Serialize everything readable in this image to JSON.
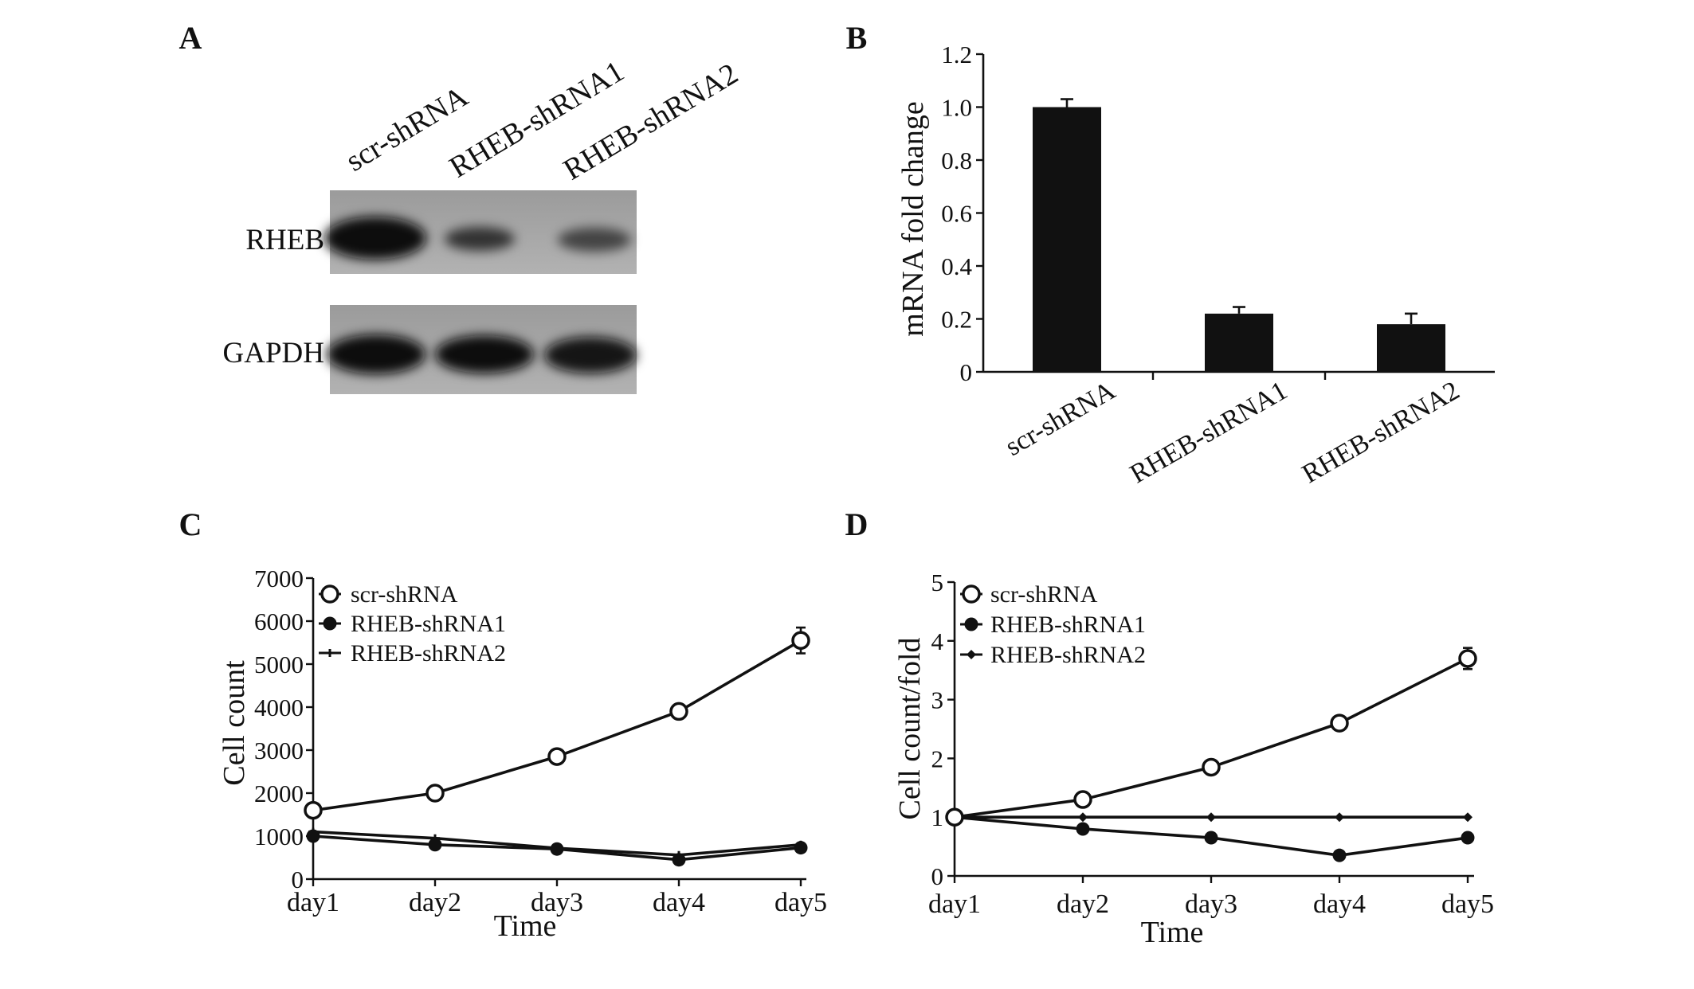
{
  "blot": {
    "panel": "A",
    "lanes": [
      "scr-shRNA",
      "RHEB-shRNA1",
      "RHEB-shRNA2"
    ],
    "rows": [
      {
        "label": "RHEB",
        "band_intensity": [
          1.0,
          0.7,
          0.6
        ]
      },
      {
        "label": "GAPDH",
        "band_intensity": [
          1.0,
          1.0,
          0.95
        ]
      }
    ]
  },
  "chart_data": [
    {
      "panel": "B",
      "type": "bar",
      "categories": [
        "scr-shRNA",
        "RHEB-shRNA1",
        "RHEB-shRNA2"
      ],
      "values": [
        1.0,
        0.22,
        0.18
      ],
      "errors": [
        0.03,
        0.025,
        0.04
      ],
      "ylabel": "mRNA fold change",
      "ylim": [
        0,
        1.2
      ],
      "yticks": [
        0,
        0.2,
        0.4,
        0.6,
        0.8,
        1.0,
        1.2
      ],
      "ytick_labels": [
        "0",
        "0.2",
        "0.4",
        "0.6",
        "0.8",
        "1.0",
        "1.2"
      ],
      "grid": false,
      "bar_color": "#111111"
    },
    {
      "panel": "C",
      "type": "line",
      "x": [
        "day1",
        "day2",
        "day3",
        "day4",
        "day5"
      ],
      "xlabel": "Time",
      "ylabel": "Cell count",
      "ylim": [
        0,
        7000
      ],
      "yticks": [
        0,
        1000,
        2000,
        3000,
        4000,
        5000,
        6000,
        7000
      ],
      "ytick_labels": [
        "0",
        "1000",
        "2000",
        "3000",
        "4000",
        "5000",
        "6000",
        "7000"
      ],
      "grid": false,
      "legend": "top-left",
      "line_color": "#111111",
      "series": [
        {
          "name": "scr-shRNA",
          "marker": "open-circle",
          "values": [
            1600,
            2000,
            2850,
            3900,
            5550
          ],
          "errors": [
            80,
            80,
            100,
            150,
            300
          ]
        },
        {
          "name": "RHEB-shRNA1",
          "marker": "filled-circle",
          "values": [
            1000,
            800,
            700,
            450,
            730
          ],
          "errors": [
            60,
            60,
            50,
            50,
            60
          ]
        },
        {
          "name": "RHEB-shRNA2",
          "marker": "cross",
          "values": [
            1100,
            950,
            720,
            560,
            800
          ]
        }
      ]
    },
    {
      "panel": "D",
      "type": "line",
      "x": [
        "day1",
        "day2",
        "day3",
        "day4",
        "day5"
      ],
      "xlabel": "Time",
      "ylabel": "Cell count/fold",
      "ylim": [
        0,
        5
      ],
      "yticks": [
        0,
        1,
        2,
        3,
        4,
        5
      ],
      "ytick_labels": [
        "0",
        "1",
        "2",
        "3",
        "4",
        "5"
      ],
      "grid": false,
      "legend": "top-left",
      "line_color": "#111111",
      "series": [
        {
          "name": "scr-shRNA",
          "marker": "open-circle",
          "values": [
            1,
            1.3,
            1.85,
            2.6,
            3.7
          ],
          "errors": [
            0,
            0.05,
            0.05,
            0.08,
            0.18
          ]
        },
        {
          "name": "RHEB-shRNA1",
          "marker": "filled-circle",
          "values": [
            1,
            0.8,
            0.65,
            0.35,
            0.65
          ],
          "errors": [
            0,
            0.03,
            0.03,
            0.04,
            0.04
          ]
        },
        {
          "name": "RHEB-shRNA2",
          "marker": "diamond",
          "values": [
            1,
            1,
            1,
            1,
            1
          ]
        }
      ]
    }
  ]
}
